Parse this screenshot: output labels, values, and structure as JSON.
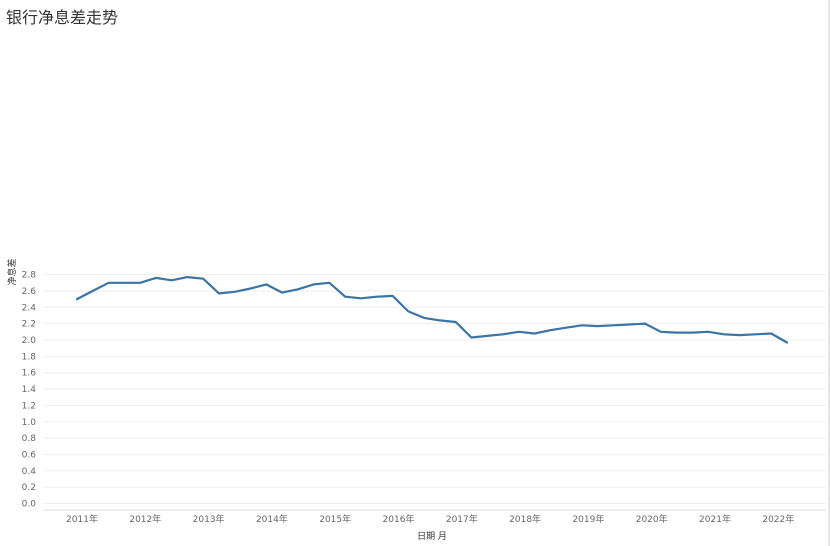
{
  "chart_data": {
    "type": "line",
    "title": "银行净息差走势",
    "xlabel": "日期 月",
    "ylabel": "净息差",
    "x": [
      "2011-03",
      "2011-06",
      "2011-09",
      "2011-12",
      "2012-03",
      "2012-06",
      "2012-09",
      "2012-12",
      "2013-03",
      "2013-06",
      "2013-09",
      "2013-12",
      "2014-03",
      "2014-06",
      "2014-09",
      "2014-12",
      "2015-03",
      "2015-06",
      "2015-09",
      "2015-12",
      "2016-03",
      "2016-06",
      "2016-09",
      "2016-12",
      "2017-03",
      "2017-06",
      "2017-09",
      "2017-12",
      "2018-03",
      "2018-06",
      "2018-09",
      "2018-12",
      "2019-03",
      "2019-06",
      "2019-09",
      "2019-12",
      "2020-03",
      "2020-06",
      "2020-09",
      "2020-12",
      "2021-03",
      "2021-06",
      "2021-09",
      "2021-12",
      "2022-03",
      "2022-06"
    ],
    "series": [
      {
        "values": [
          2.5,
          2.6,
          2.7,
          2.7,
          2.7,
          2.76,
          2.73,
          2.77,
          2.75,
          2.57,
          2.59,
          2.63,
          2.68,
          2.58,
          2.62,
          2.68,
          2.7,
          2.53,
          2.51,
          2.53,
          2.54,
          2.35,
          2.27,
          2.24,
          2.22,
          2.03,
          2.05,
          2.07,
          2.1,
          2.08,
          2.12,
          2.15,
          2.18,
          2.17,
          2.18,
          2.19,
          2.2,
          2.1,
          2.09,
          2.09,
          2.1,
          2.07,
          2.06,
          2.07,
          2.08,
          1.97
        ]
      }
    ],
    "x_tick_labels": [
      "2011年",
      "2012年",
      "2013年",
      "2014年",
      "2015年",
      "2016年",
      "2017年",
      "2018年",
      "2019年",
      "2020年",
      "2021年",
      "2022年"
    ],
    "y_ticks": [
      "0.0",
      "0.2",
      "0.4",
      "0.6",
      "0.8",
      "1.0",
      "1.2",
      "1.4",
      "1.6",
      "1.8",
      "2.0",
      "2.2",
      "2.4",
      "2.6",
      "2.8"
    ],
    "ylim": [
      0,
      2.85
    ],
    "grid": true,
    "legend": "none",
    "colors": {
      "line": "#3b74a5"
    }
  }
}
